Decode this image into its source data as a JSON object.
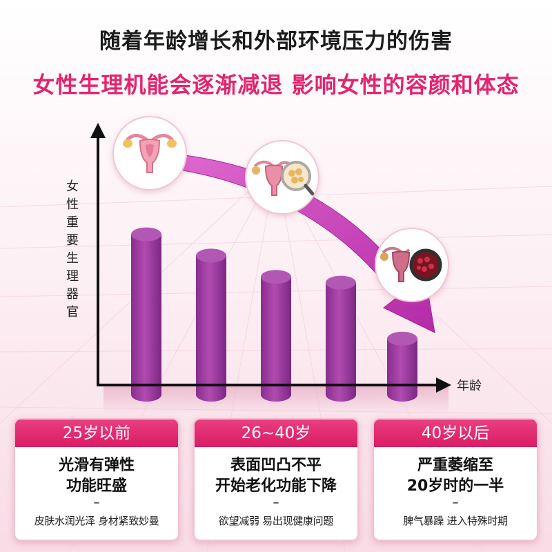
{
  "header": {
    "line1": "随着年龄增长和外部环境压力的伤害",
    "line2": "女性生理机能会逐渐减退 影响女性的容颜和体态"
  },
  "axes": {
    "y_label": "女性重要生理器官",
    "x_label": "年龄"
  },
  "bars": {
    "levels": [
      0.83,
      0.72,
      0.61,
      0.58,
      0.29
    ]
  },
  "colors": {
    "accent": "#e3246f",
    "bar": "#9c3a9e",
    "arrow": "#c637b4"
  },
  "icons": [
    "uterus-healthy-icon",
    "uterus-magnified-icon",
    "uterus-damaged-icon"
  ],
  "cards": [
    {
      "header": "25岁以前",
      "title_line1": "光滑有弹性",
      "title_line2": "功能旺盛",
      "dash": "–",
      "subtitle": "皮肤水润光泽 身材紧致妙曼"
    },
    {
      "header": "26~40岁",
      "title_line1": "表面凹凸不平",
      "title_line2": "开始老化功能下降",
      "dash": "–",
      "subtitle": "欲望减弱 易出现健康问题"
    },
    {
      "header": "40岁以后",
      "title_line1": "严重萎缩至",
      "title_line2": "20岁时的一半",
      "dash": "–",
      "subtitle": "脾气暴躁 进入特殊时期"
    }
  ]
}
